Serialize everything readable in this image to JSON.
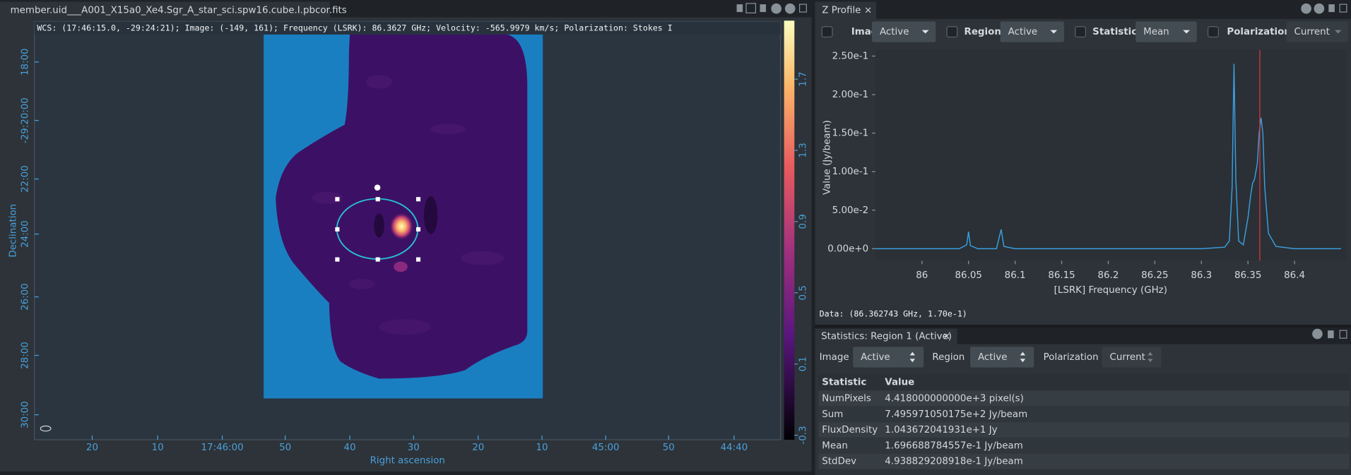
{
  "image_viewer": {
    "tab_title": "member.uid___A001_X15a0_Xe4.Sgr_A_star_sci.spw16.cube.I.pbcor.fits",
    "info_bar": "WCS: (17:46:15.0, -29:24:21); Image: (-149, 161); Frequency (LSRK): 86.3627 GHz; Velocity: -565.9979 km/s; Polarization: Stokes I",
    "dec_label": "Declination",
    "ra_label": "Right ascension",
    "dec_ticks": [
      "18:00",
      "-29:20:00",
      "22:00",
      "24:00",
      "26:00",
      "28:00",
      "30:00"
    ],
    "ra_ticks": [
      "20",
      "10",
      "17:46:00",
      "50",
      "40",
      "30",
      "20",
      "10",
      "45:00",
      "50",
      "44:40"
    ],
    "colorbar_ticks": [
      1.7,
      1.3,
      0.9,
      0.5,
      0.1,
      -0.3
    ]
  },
  "z_profile": {
    "tab_title": "Z Profile",
    "controls": [
      {
        "label": "Image",
        "value": "Active"
      },
      {
        "label": "Region",
        "value": "Active"
      },
      {
        "label": "Statistic",
        "value": "Mean"
      },
      {
        "label": "Polarization",
        "value": "Current"
      }
    ],
    "data_readout": "Data: (86.362743 GHz, 1.70e-1)"
  },
  "chart_data": {
    "type": "line",
    "xlabel": "[LSRK] Frequency (GHz)",
    "ylabel": "Value (Jy/beam)",
    "x": [
      85.95,
      86.0,
      86.04,
      86.048,
      86.05,
      86.052,
      86.06,
      86.08,
      86.085,
      86.088,
      86.1,
      86.2,
      86.3,
      86.325,
      86.33,
      86.333,
      86.335,
      86.337,
      86.34,
      86.345,
      86.35,
      86.353,
      86.355,
      86.357,
      86.36,
      86.362,
      86.364,
      86.366,
      86.368,
      86.372,
      86.38,
      86.4,
      86.45
    ],
    "values": [
      0,
      0,
      0,
      0.005,
      0.022,
      0.004,
      0,
      0,
      0.025,
      0.003,
      0,
      0,
      0,
      0.002,
      0.01,
      0.08,
      0.24,
      0.09,
      0.01,
      0.005,
      0.04,
      0.07,
      0.085,
      0.09,
      0.11,
      0.15,
      0.17,
      0.15,
      0.08,
      0.02,
      0.003,
      0,
      0
    ],
    "color": "#3a9ee0",
    "xlim": [
      85.95,
      86.456
    ],
    "ylim": [
      -0.0156,
      0.258
    ],
    "xticks": [
      86,
      86.05,
      86.1,
      86.15,
      86.2,
      86.25,
      86.3,
      86.35,
      86.4
    ],
    "yticks": [
      {
        "value": 0,
        "label": "0.00e+0"
      },
      {
        "value": 0.05,
        "label": "5.00e-2"
      },
      {
        "value": 0.1,
        "label": "1.00e-1"
      },
      {
        "value": 0.15,
        "label": "1.50e-1"
      },
      {
        "value": 0.2,
        "label": "2.00e-1"
      },
      {
        "value": 0.25,
        "label": "2.50e-1"
      }
    ],
    "cursor_x": 86.362743,
    "cursor_color": "#e0383d"
  },
  "statistics": {
    "tab_title": "Statistics: Region 1 (Active)",
    "controls": [
      {
        "label": "Image",
        "value": "Active"
      },
      {
        "label": "Region",
        "value": "Active"
      },
      {
        "label": "Polarization",
        "value": "Current"
      }
    ],
    "columns": [
      "Statistic",
      "Value"
    ],
    "rows": [
      [
        "NumPixels",
        "4.418000000000e+3 pixel(s)"
      ],
      [
        "Sum",
        "7.495971050175e+2 Jy/beam"
      ],
      [
        "FluxDensity",
        "1.043672041931e+1 Jy"
      ],
      [
        "Mean",
        "1.696688784557e-1 Jy/beam"
      ],
      [
        "StdDev",
        "4.938829208918e-1 Jy/beam"
      ]
    ]
  }
}
